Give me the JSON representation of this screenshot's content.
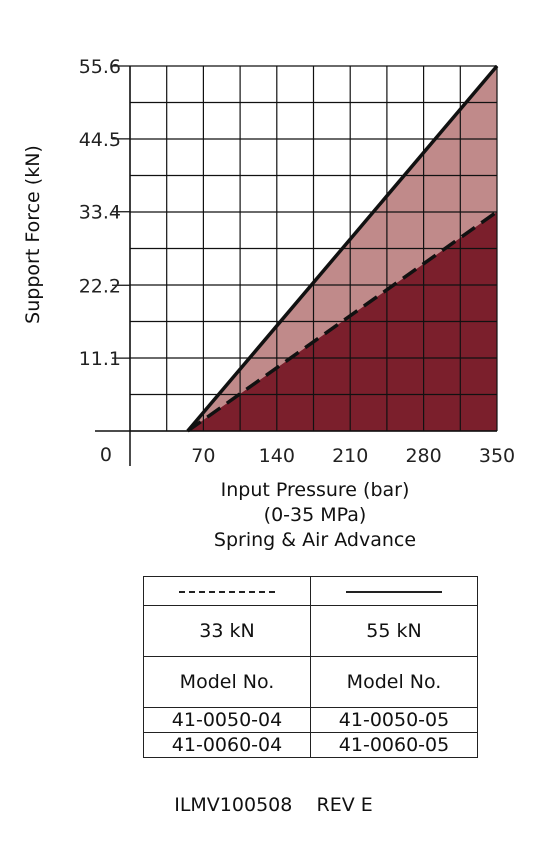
{
  "chart_data": {
    "type": "area",
    "ylabel": "Support Force (kN)",
    "xlabel_lines": [
      "Input Pressure (bar)",
      "(0-35 MPa)",
      "Spring & Air Advance"
    ],
    "x_ticks": [
      "70",
      "140",
      "210",
      "280",
      "350"
    ],
    "y_ticks": [
      "0",
      "11.1",
      "22.2",
      "33.4",
      "44.5",
      "55.6"
    ],
    "y_tick_values": [
      0,
      11.1,
      22.2,
      33.4,
      44.5,
      55.6
    ],
    "x_tick_values": [
      70,
      140,
      210,
      280,
      350
    ],
    "xlim": [
      0,
      350
    ],
    "ylim": [
      0,
      55.6
    ],
    "grid": true,
    "series": [
      {
        "name": "33 kN",
        "style": "dashed",
        "color": "#7b1f2c",
        "x": [
          55,
          350
        ],
        "y": [
          0,
          33.4
        ]
      },
      {
        "name": "55 kN",
        "style": "solid",
        "color": "#c08a8a",
        "x": [
          55,
          350
        ],
        "y": [
          0,
          55.6
        ]
      }
    ]
  },
  "legend_table": {
    "capacities": [
      "33 kN",
      "55 kN"
    ],
    "header": [
      "Model No.",
      "Model No."
    ],
    "models": [
      [
        "41-0050-04",
        "41-0050-05"
      ],
      [
        "41-0060-04",
        "41-0060-05"
      ]
    ]
  },
  "footer": {
    "doc_id": "ILMV100508",
    "revision": "REV E"
  }
}
